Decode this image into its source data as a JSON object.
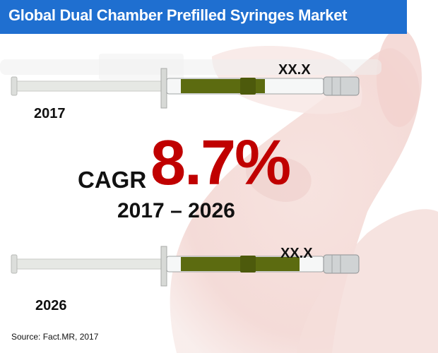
{
  "title": "Global Dual Chamber Prefilled Syringes Market",
  "colors": {
    "title_bar": "#1f6fd0",
    "cagr_value": "#c00000",
    "liquid": "#5c6b10"
  },
  "top_panel": {
    "year": "2017",
    "value": "XX.X",
    "fill_fraction": 0.6
  },
  "bottom_panel": {
    "year": "2026",
    "value": "XX.X",
    "fill_fraction": 0.85
  },
  "cagr": {
    "label": "CAGR",
    "value": "8.7%",
    "period": "2017 – 2026"
  },
  "source": "Source: Fact.MR, 2017"
}
